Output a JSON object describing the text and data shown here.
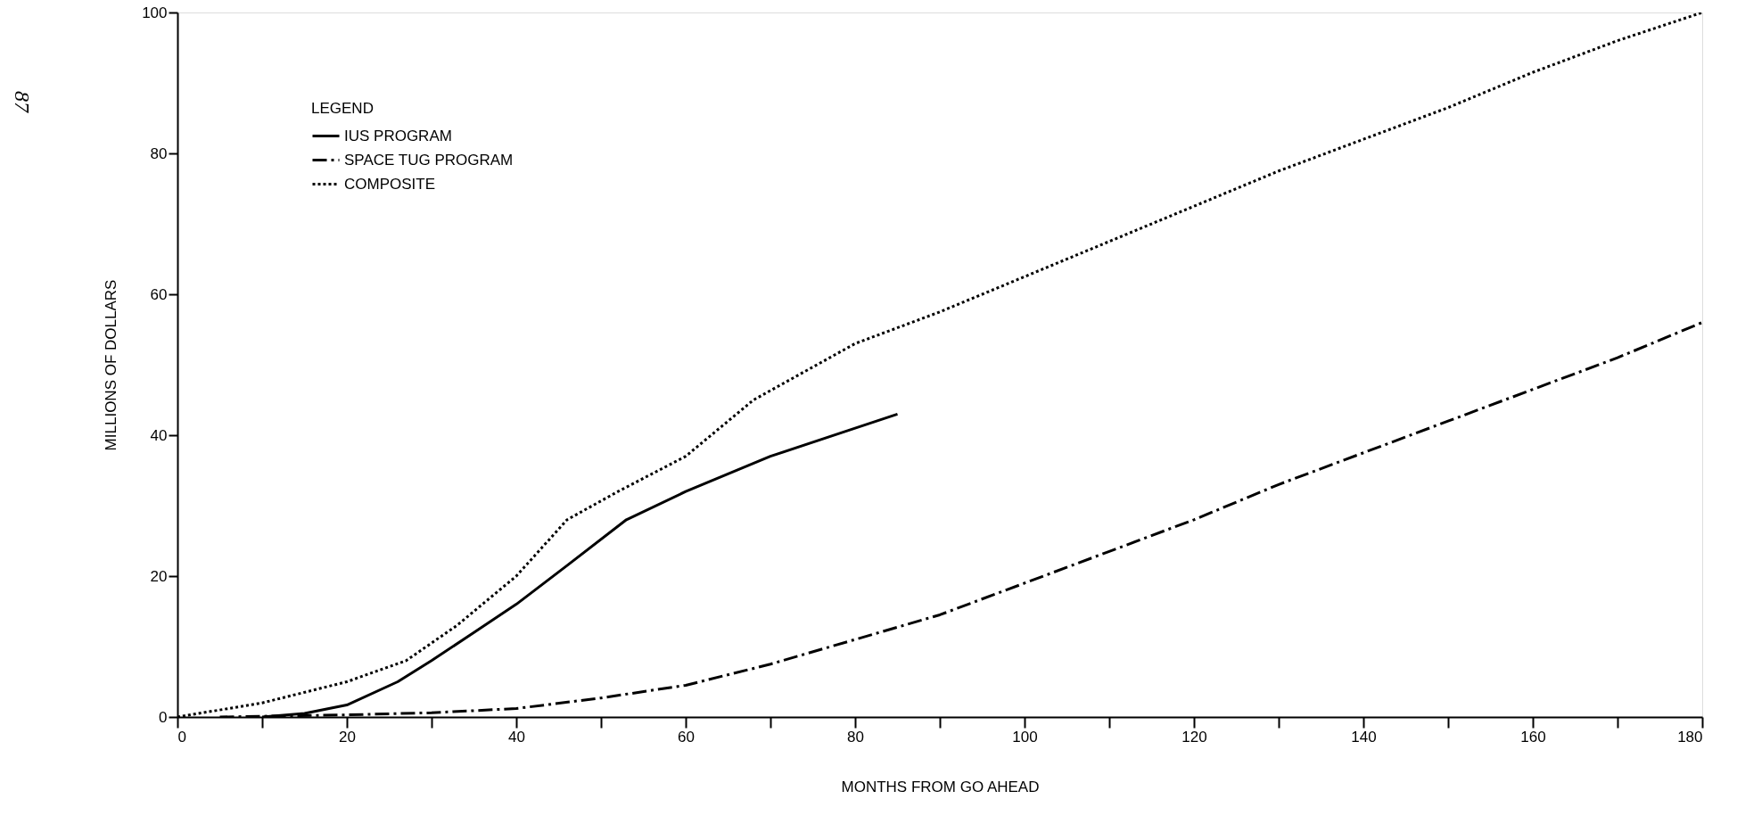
{
  "chart_data": {
    "type": "line",
    "xlabel": "MONTHS FROM GO AHEAD",
    "ylabel": "MILLIONS OF DOLLARS",
    "legend_title": "LEGEND",
    "legend": "top left",
    "grid": false,
    "annotations": [
      "87"
    ],
    "xlim": [
      0,
      180
    ],
    "ylim": [
      0,
      100
    ],
    "xticks": [
      0,
      {
        "value": 10,
        "label": null
      },
      20,
      {
        "value": 30,
        "label": null
      },
      40,
      {
        "value": 50,
        "label": null
      },
      60,
      {
        "value": 70,
        "label": null
      },
      80,
      {
        "value": 90,
        "label": null
      },
      100,
      {
        "value": 110,
        "label": null
      },
      120,
      {
        "value": 130,
        "label": null
      },
      140,
      {
        "value": 150,
        "label": null
      },
      160,
      {
        "value": 170,
        "label": null
      },
      180
    ],
    "yticks": [
      0,
      20,
      40,
      60,
      80,
      100
    ],
    "series": [
      {
        "name": "IUS PROGRAM",
        "color": "#000000",
        "line_style": "solid",
        "x": [
          10,
          15,
          20,
          26,
          30,
          35,
          40,
          46,
          53,
          60,
          70,
          80,
          85
        ],
        "values": [
          0,
          0.5,
          1.7,
          5,
          8,
          12,
          16,
          21.5,
          28,
          32,
          37,
          41,
          43
        ]
      },
      {
        "name": "SPACE TUG PROGRAM",
        "color": "#000000",
        "line_style": "dashdot",
        "x": [
          5,
          20,
          30,
          40,
          50,
          60,
          70,
          80,
          90,
          100,
          110,
          120,
          130,
          140,
          150,
          160,
          170,
          180
        ],
        "values": [
          0,
          0.3,
          0.6,
          1.2,
          2.7,
          4.5,
          7.5,
          11,
          14.5,
          19,
          23.5,
          28,
          33,
          37.5,
          42,
          46.5,
          51,
          56
        ]
      },
      {
        "name": "COMPOSITE",
        "color": "#000000",
        "line_style": "dotted",
        "x": [
          0,
          10,
          20,
          27,
          33,
          40,
          46,
          52,
          60,
          68,
          80,
          90,
          100,
          110,
          120,
          130,
          140,
          150,
          160,
          170,
          180
        ],
        "values": [
          0,
          2,
          5,
          8,
          13,
          20,
          28,
          32,
          37,
          45,
          53,
          57.5,
          62.5,
          67.5,
          72.5,
          77.5,
          82,
          86.5,
          91.5,
          96,
          100
        ]
      }
    ]
  }
}
